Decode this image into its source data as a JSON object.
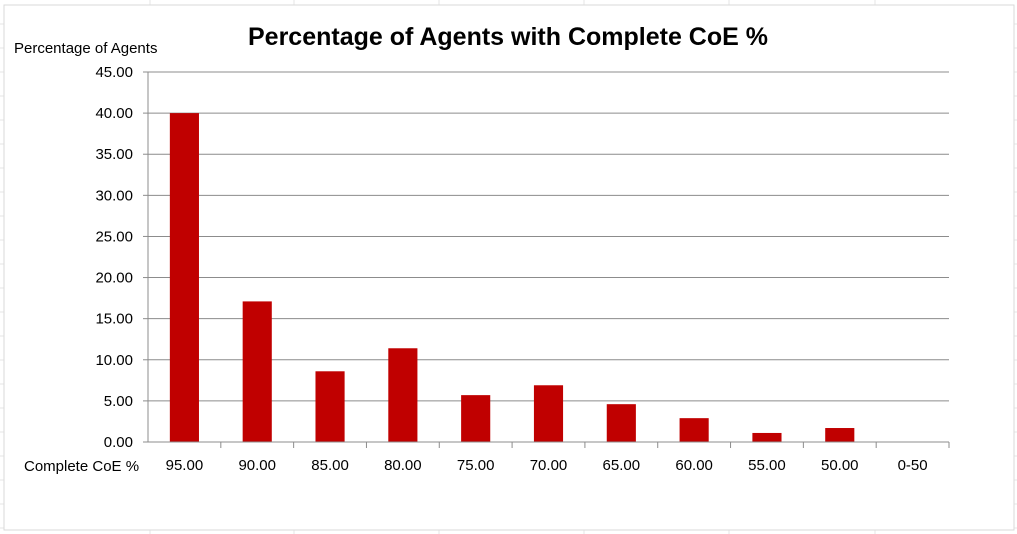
{
  "chart_data": {
    "type": "bar",
    "title": "Percentage of Agents with Complete CoE %",
    "xlabel": "Complete CoE %",
    "ylabel": "Percentage of Agents",
    "categories": [
      "95.00",
      "90.00",
      "85.00",
      "80.00",
      "75.00",
      "70.00",
      "65.00",
      "60.00",
      "55.00",
      "50.00",
      "0-50"
    ],
    "values": [
      40.0,
      17.1,
      8.6,
      11.4,
      5.7,
      6.9,
      4.6,
      2.9,
      1.1,
      1.7,
      0.0
    ],
    "ylim": [
      0,
      45
    ],
    "yticks": [
      "0.00",
      "5.00",
      "10.00",
      "15.00",
      "20.00",
      "25.00",
      "30.00",
      "35.00",
      "40.00",
      "45.00"
    ],
    "grid": true,
    "legend": "none",
    "bar_color": "#c00000"
  }
}
